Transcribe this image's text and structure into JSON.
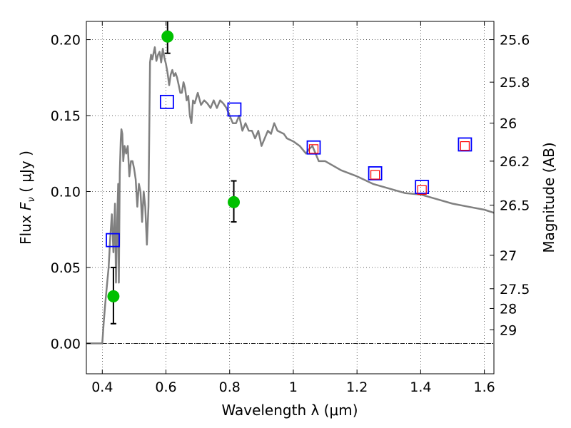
{
  "chart_data": {
    "type": "scatter",
    "xlabel": "Wavelength  λ (μm)",
    "ylabel_prefix": "Flux  ",
    "ylabel_var": "F",
    "ylabel_sub": "ν",
    "ylabel_suffix": "  ( μJy )",
    "y2label": "Magnitude (AB)",
    "xlim": [
      0.35,
      1.63
    ],
    "ylim": [
      -0.02,
      0.212
    ],
    "x_ticks": [
      0.4,
      0.6,
      0.8,
      1.0,
      1.2,
      1.4,
      1.6
    ],
    "x_tick_labels": [
      "0.4",
      "0.6",
      "0.8",
      "1",
      "1.2",
      "1.4",
      "1.6"
    ],
    "y_ticks": [
      0.0,
      0.05,
      0.1,
      0.15,
      0.2
    ],
    "y_tick_labels": [
      "0.00",
      "0.05",
      "0.10",
      "0.15",
      "0.20"
    ],
    "y2_ticks": [
      {
        "flux": 0.2,
        "label": "25.6"
      },
      {
        "flux": 0.172,
        "label": "25.8"
      },
      {
        "flux": 0.145,
        "label": "26"
      },
      {
        "flux": 0.12,
        "label": "26.2"
      },
      {
        "flux": 0.091,
        "label": "26.5"
      },
      {
        "flux": 0.058,
        "label": "27"
      },
      {
        "flux": 0.036,
        "label": "27.5"
      },
      {
        "flux": 0.023,
        "label": "28"
      },
      {
        "flux": 0.009,
        "label": "29"
      }
    ],
    "grid": true,
    "zero_line": true,
    "series": [
      {
        "kind": "line",
        "color": "#808080",
        "x": [
          0.35,
          0.4,
          0.405,
          0.41,
          0.42,
          0.425,
          0.43,
          0.435,
          0.44,
          0.443,
          0.447,
          0.45,
          0.452,
          0.455,
          0.458,
          0.46,
          0.463,
          0.466,
          0.47,
          0.475,
          0.48,
          0.485,
          0.49,
          0.495,
          0.5,
          0.505,
          0.51,
          0.515,
          0.52,
          0.525,
          0.53,
          0.535,
          0.54,
          0.545,
          0.55,
          0.553,
          0.557,
          0.56,
          0.565,
          0.57,
          0.575,
          0.58,
          0.585,
          0.59,
          0.595,
          0.6,
          0.605,
          0.61,
          0.615,
          0.62,
          0.625,
          0.63,
          0.635,
          0.64,
          0.645,
          0.65,
          0.655,
          0.66,
          0.665,
          0.67,
          0.675,
          0.68,
          0.685,
          0.69,
          0.7,
          0.71,
          0.72,
          0.73,
          0.74,
          0.75,
          0.76,
          0.77,
          0.78,
          0.79,
          0.8,
          0.81,
          0.82,
          0.83,
          0.84,
          0.85,
          0.86,
          0.87,
          0.88,
          0.89,
          0.9,
          0.92,
          0.93,
          0.94,
          0.95,
          0.97,
          0.98,
          1.0,
          1.02,
          1.04,
          1.05,
          1.06,
          1.08,
          1.1,
          1.15,
          1.2,
          1.25,
          1.3,
          1.35,
          1.4,
          1.45,
          1.5,
          1.55,
          1.6,
          1.63
        ],
        "y": [
          0.0,
          0.0,
          0.015,
          0.028,
          0.05,
          0.07,
          0.085,
          0.06,
          0.092,
          0.04,
          0.083,
          0.105,
          0.04,
          0.112,
          0.134,
          0.141,
          0.138,
          0.12,
          0.13,
          0.125,
          0.13,
          0.11,
          0.12,
          0.12,
          0.115,
          0.108,
          0.09,
          0.105,
          0.1,
          0.08,
          0.1,
          0.09,
          0.065,
          0.09,
          0.185,
          0.19,
          0.187,
          0.19,
          0.195,
          0.186,
          0.19,
          0.192,
          0.185,
          0.194,
          0.188,
          0.184,
          0.178,
          0.17,
          0.177,
          0.18,
          0.176,
          0.178,
          0.175,
          0.17,
          0.165,
          0.165,
          0.172,
          0.168,
          0.16,
          0.163,
          0.15,
          0.145,
          0.16,
          0.158,
          0.165,
          0.157,
          0.16,
          0.158,
          0.155,
          0.16,
          0.155,
          0.16,
          0.158,
          0.155,
          0.15,
          0.145,
          0.145,
          0.15,
          0.14,
          0.145,
          0.14,
          0.14,
          0.135,
          0.14,
          0.13,
          0.14,
          0.138,
          0.145,
          0.14,
          0.138,
          0.135,
          0.133,
          0.13,
          0.125,
          0.128,
          0.13,
          0.12,
          0.12,
          0.114,
          0.11,
          0.105,
          0.102,
          0.099,
          0.098,
          0.095,
          0.092,
          0.09,
          0.088,
          0.086
        ]
      },
      {
        "kind": "points",
        "marker": "circle",
        "color": "#00c000",
        "x": [
          0.435,
          0.605,
          0.813
        ],
        "y": [
          0.031,
          0.202,
          0.093
        ],
        "yerr_low": [
          0.013,
          0.191,
          0.08
        ],
        "yerr_high": [
          0.05,
          0.214,
          0.107
        ]
      },
      {
        "kind": "points",
        "marker": "square",
        "color": "#0000ff",
        "x": [
          0.433,
          0.603,
          0.815,
          1.064,
          1.257,
          1.404,
          1.539
        ],
        "y": [
          0.068,
          0.159,
          0.154,
          0.129,
          0.112,
          0.103,
          0.131
        ]
      },
      {
        "kind": "points",
        "marker": "small-square",
        "color": "#ff0000",
        "x": [
          1.064,
          1.257,
          1.404,
          1.539
        ],
        "y": [
          0.128,
          0.111,
          0.101,
          0.13
        ]
      }
    ]
  }
}
